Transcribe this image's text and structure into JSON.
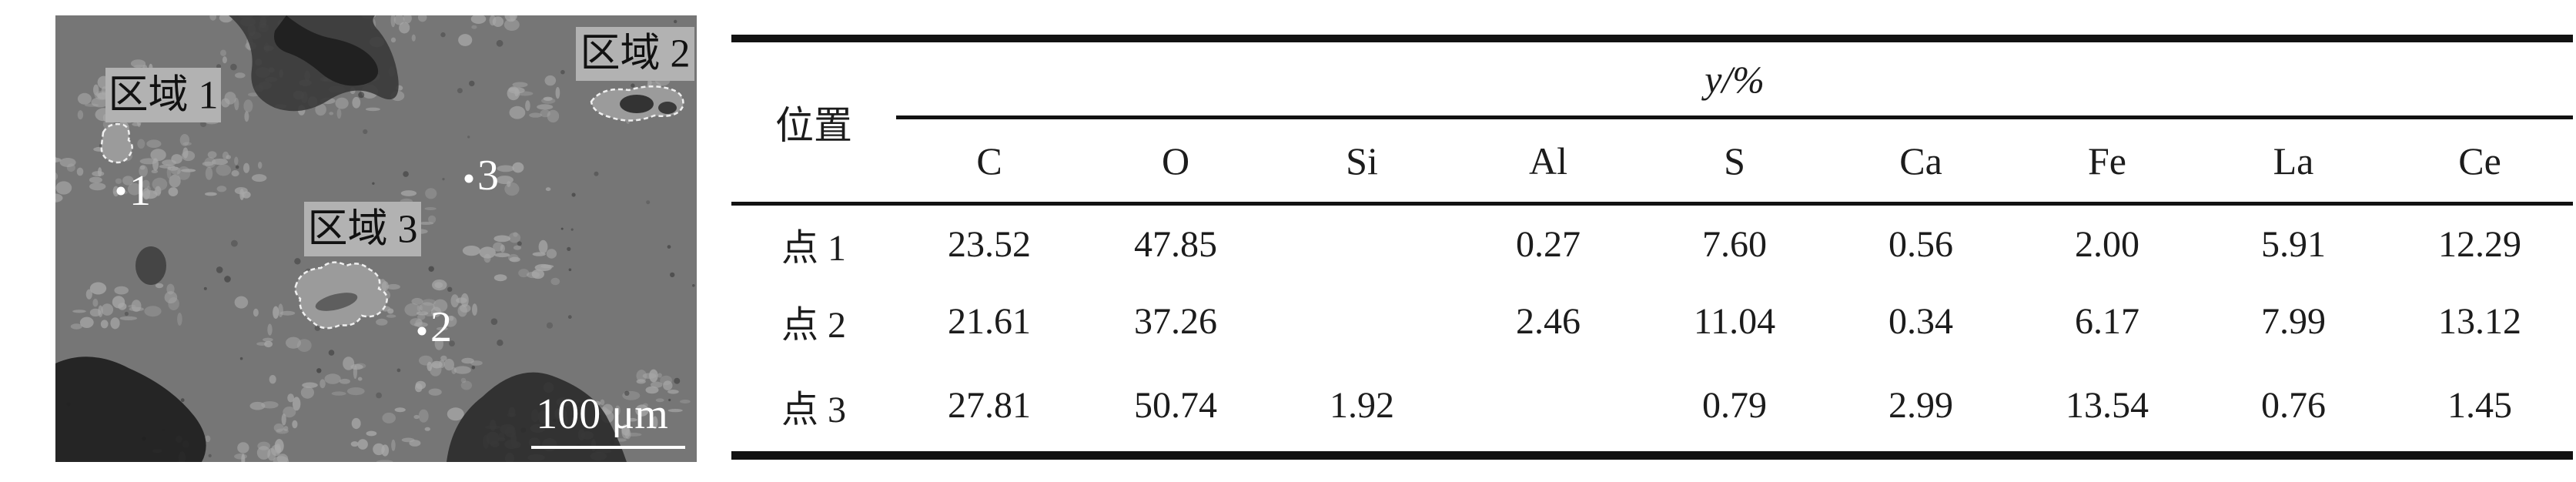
{
  "micrograph": {
    "region_labels": [
      "区域 1",
      "区域 2",
      "区域 3"
    ],
    "point_labels": [
      "1",
      "2",
      "3"
    ],
    "scale_bar_label": "100 μm"
  },
  "table": {
    "position_header": "位置",
    "value_header": "y/%",
    "element_headers": [
      "C",
      "O",
      "Si",
      "Al",
      "S",
      "Ca",
      "Fe",
      "La",
      "Ce"
    ],
    "rows": [
      {
        "label": "点 1",
        "values": [
          "23.52",
          "47.85",
          "",
          "0.27",
          "7.60",
          "0.56",
          "2.00",
          "5.91",
          "12.29"
        ]
      },
      {
        "label": "点 2",
        "values": [
          "21.61",
          "37.26",
          "",
          "2.46",
          "11.04",
          "0.34",
          "6.17",
          "7.99",
          "13.12"
        ]
      },
      {
        "label": "点 3",
        "values": [
          "27.81",
          "50.74",
          "1.92",
          "",
          "0.79",
          "2.99",
          "13.54",
          "0.76",
          "1.45"
        ]
      }
    ]
  },
  "colors": {
    "rule": "#121212",
    "sem_base": "#767676",
    "sem_light_patch": "#a8a8a8",
    "label_box_bg": "#b2b2b2",
    "text": "#1c1c1c",
    "overlay_text": "#ffffff"
  }
}
